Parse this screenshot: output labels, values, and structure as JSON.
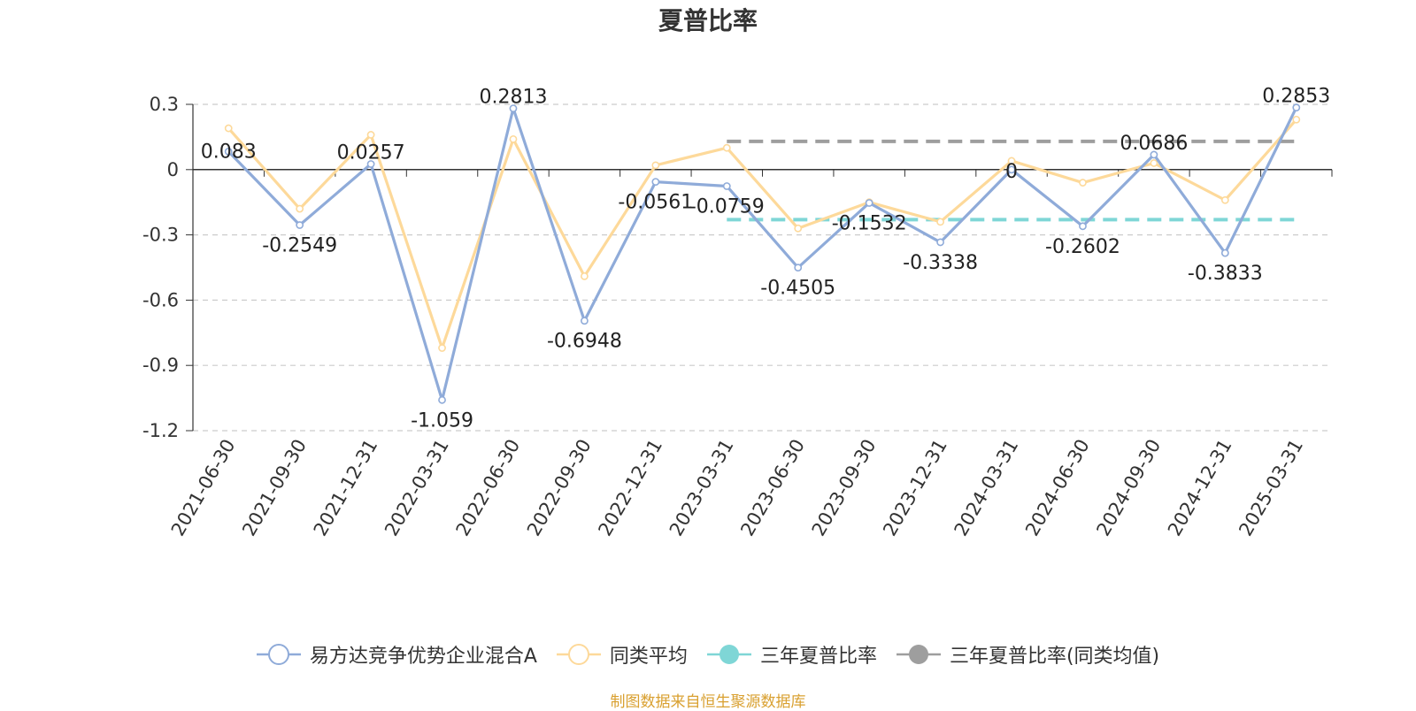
{
  "title": "夏普比率",
  "source_note": "制图数据来自恒生聚源数据库",
  "legend": [
    {
      "label": "易方达竞争优势企业混合A",
      "color": "#8fabd9",
      "icon": "hollow-circle-line"
    },
    {
      "label": "同类平均",
      "color": "#fdd99a",
      "icon": "hollow-circle-line"
    },
    {
      "label": "三年夏普比率",
      "color": "#7fd6d6",
      "icon": "filled-circle-line"
    },
    {
      "label": "三年夏普比率(同类均值)",
      "color": "#9e9e9e",
      "icon": "filled-circle-line"
    }
  ],
  "chart_data": {
    "type": "line",
    "title": "夏普比率",
    "categories": [
      "2021-06-30",
      "2021-09-30",
      "2021-12-31",
      "2022-03-31",
      "2022-06-30",
      "2022-09-30",
      "2022-12-31",
      "2023-03-31",
      "2023-06-30",
      "2023-09-30",
      "2023-12-31",
      "2024-03-31",
      "2024-06-30",
      "2024-09-30",
      "2024-12-31",
      "2025-03-31"
    ],
    "y_ticks": [
      "0.3",
      "0",
      "-0.3",
      "-0.6",
      "-0.9",
      "-1.2"
    ],
    "ylim": [
      -1.2,
      0.3
    ],
    "grid": true,
    "legend_position": "bottom",
    "series": [
      {
        "name": "易方达竞争优势企业混合A",
        "color": "#8fabd9",
        "values": [
          0.083,
          -0.2549,
          0.0257,
          -1.059,
          0.2813,
          -0.6948,
          -0.0561,
          -0.0759,
          -0.4505,
          -0.1532,
          -0.3338,
          0,
          -0.2602,
          0.0686,
          -0.3833,
          0.2853
        ],
        "labels": [
          "0.083",
          "-0.2549",
          "0.0257",
          "-1.059",
          "0.2813",
          "-0.6948",
          "-0.0561",
          "-0.0759",
          "-0.4505",
          "-0.1532",
          "-0.3338",
          "0",
          "-0.2602",
          "0.0686",
          "-0.3833",
          "0.2853"
        ]
      },
      {
        "name": "同类平均",
        "color": "#fdd99a",
        "values": [
          0.19,
          -0.18,
          0.16,
          -0.82,
          0.14,
          -0.49,
          0.02,
          0.1,
          -0.27,
          -0.15,
          -0.24,
          0.04,
          -0.06,
          0.03,
          -0.14,
          0.23
        ]
      }
    ],
    "reference_lines": [
      {
        "name": "三年夏普比率",
        "color": "#7fd6d6",
        "value": -0.23,
        "from": "2023-03-31",
        "to": "2025-03-31"
      },
      {
        "name": "三年夏普比率(同类均值)",
        "color": "#9e9e9e",
        "value": 0.13,
        "from": "2023-03-31",
        "to": "2025-03-31"
      }
    ]
  }
}
